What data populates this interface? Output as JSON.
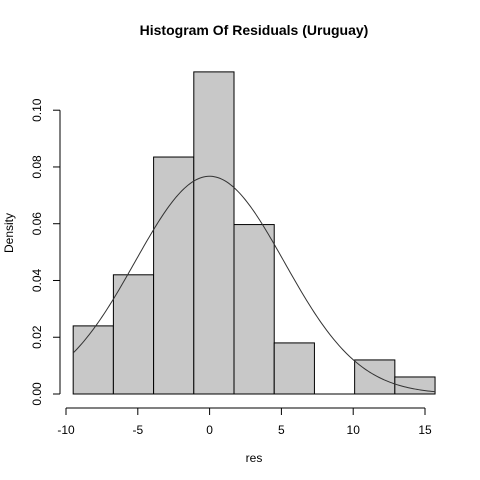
{
  "chart_data": {
    "type": "bar",
    "title": "Histogram Of Residuals (Uruguay)",
    "xlabel": "res",
    "ylabel": "Density",
    "xlim": [
      -10,
      16
    ],
    "ylim": [
      0,
      0.115
    ],
    "x_ticks": [
      -10,
      -5,
      0,
      5,
      10,
      15
    ],
    "y_ticks": [
      0.0,
      0.02,
      0.04,
      0.06,
      0.08,
      0.1
    ],
    "y_tick_labels": [
      "0.00",
      "0.02",
      "0.04",
      "0.06",
      "0.08",
      "0.10"
    ],
    "bins": [
      {
        "x0": -9.5,
        "x1": -6.7,
        "density": 0.024
      },
      {
        "x0": -6.7,
        "x1": -3.9,
        "density": 0.042
      },
      {
        "x0": -3.9,
        "x1": -1.1,
        "density": 0.0835
      },
      {
        "x0": -1.1,
        "x1": 1.7,
        "density": 0.1135
      },
      {
        "x0": 1.7,
        "x1": 4.5,
        "density": 0.0597
      },
      {
        "x0": 4.5,
        "x1": 7.3,
        "density": 0.018
      },
      {
        "x0": 7.3,
        "x1": 10.1,
        "density": 0.0
      },
      {
        "x0": 10.1,
        "x1": 12.9,
        "density": 0.012
      },
      {
        "x0": 12.9,
        "x1": 15.7,
        "density": 0.006
      }
    ],
    "density_curve": {
      "type": "normal",
      "mean": 0.0,
      "sd": 5.2,
      "x_range": [
        -9.5,
        15.7
      ]
    },
    "bar_fill": "#c8c8c8",
    "bar_stroke": "#000000",
    "curve_color": "#333333",
    "grid": false,
    "legend": "none"
  }
}
